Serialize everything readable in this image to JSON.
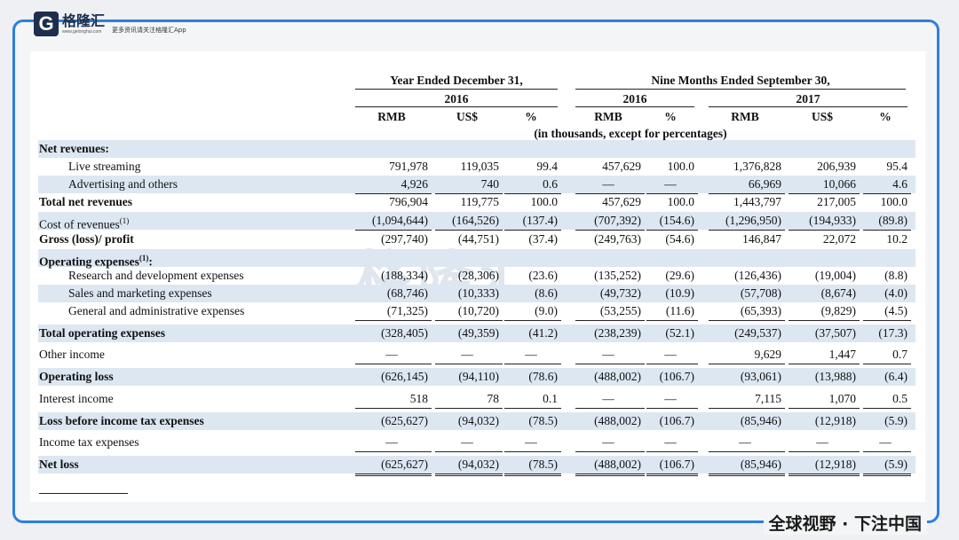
{
  "brand": {
    "logo_letter": "G",
    "name": "格隆汇",
    "url": "www.gelonghui.com",
    "tagline": "更多资讯请关注格隆汇App",
    "watermark": "格隆汇",
    "slogan": "全球视野 · 下注中国"
  },
  "headers": {
    "year_group": "Year Ended December 31,",
    "nine_group": "Nine Months Ended September 30,",
    "y2016": "2016",
    "n2016": "2016",
    "n2017": "2017",
    "currency": [
      "RMB",
      "US$",
      "%",
      "RMB",
      "%",
      "RMB",
      "US$",
      "%"
    ],
    "note": "(in thousands, except for percentages)"
  },
  "rows": [
    {
      "label": "Net revenues:",
      "vals": [
        "",
        "",
        "",
        "",
        "",
        "",
        "",
        ""
      ]
    },
    {
      "label": "Live streaming",
      "vals": [
        "791,978",
        "119,035",
        "99.4",
        "457,629",
        "100.0",
        "1,376,828",
        "206,939",
        "95.4"
      ]
    },
    {
      "label": "Advertising and others",
      "vals": [
        "4,926",
        "740",
        "0.6",
        "—",
        "—",
        "66,969",
        "10,066",
        "4.6"
      ]
    },
    {
      "label": "Total net revenues",
      "vals": [
        "796,904",
        "119,775",
        "100.0",
        "457,629",
        "100.0",
        "1,443,797",
        "217,005",
        "100.0"
      ]
    },
    {
      "label": "Cost of revenues",
      "sup": "(1)",
      "vals": [
        "(1,094,644)",
        "(164,526)",
        "(137.4)",
        "(707,392)",
        "(154.6)",
        "(1,296,950)",
        "(194,933)",
        "(89.8)"
      ]
    },
    {
      "label": "Gross (loss)/ profit",
      "vals": [
        "(297,740)",
        "(44,751)",
        "(37.4)",
        "(249,763)",
        "(54.6)",
        "146,847",
        "22,072",
        "10.2"
      ]
    },
    {
      "label": "Operating expenses",
      "sup": "(1)",
      "suffix": ":",
      "vals": [
        "",
        "",
        "",
        "",
        "",
        "",
        "",
        ""
      ]
    },
    {
      "label": "Research and development expenses",
      "vals": [
        "(188,334)",
        "(28,306)",
        "(23.6)",
        "(135,252)",
        "(29.6)",
        "(126,436)",
        "(19,004)",
        "(8.8)"
      ]
    },
    {
      "label": "Sales and marketing expenses",
      "vals": [
        "(68,746)",
        "(10,333)",
        "(8.6)",
        "(49,732)",
        "(10.9)",
        "(57,708)",
        "(8,674)",
        "(4.0)"
      ]
    },
    {
      "label": "General and administrative expenses",
      "vals": [
        "(71,325)",
        "(10,720)",
        "(9.0)",
        "(53,255)",
        "(11.6)",
        "(65,393)",
        "(9,829)",
        "(4.5)"
      ]
    },
    {
      "label": "Total operating expenses",
      "vals": [
        "(328,405)",
        "(49,359)",
        "(41.2)",
        "(238,239)",
        "(52.1)",
        "(249,537)",
        "(37,507)",
        "(17.3)"
      ]
    },
    {
      "label": "Other income",
      "vals": [
        "—",
        "—",
        "—",
        "—",
        "—",
        "9,629",
        "1,447",
        "0.7"
      ]
    },
    {
      "label": "Operating loss",
      "vals": [
        "(626,145)",
        "(94,110)",
        "(78.6)",
        "(488,002)",
        "(106.7)",
        "(93,061)",
        "(13,988)",
        "(6.4)"
      ]
    },
    {
      "label": "Interest income",
      "vals": [
        "518",
        "78",
        "0.1",
        "—",
        "—",
        "7,115",
        "1,070",
        "0.5"
      ]
    },
    {
      "label": "Loss before income tax expenses",
      "vals": [
        "(625,627)",
        "(94,032)",
        "(78.5)",
        "(488,002)",
        "(106.7)",
        "(85,946)",
        "(12,918)",
        "(5.9)"
      ]
    },
    {
      "label": "Income tax expenses",
      "vals": [
        "—",
        "—",
        "—",
        "—",
        "—",
        "—",
        "—",
        "—"
      ]
    },
    {
      "label": "Net loss",
      "vals": [
        "(625,627)",
        "(94,032)",
        "(78.5)",
        "(488,002)",
        "(106.7)",
        "(85,946)",
        "(12,918)",
        "(5.9)"
      ]
    }
  ]
}
